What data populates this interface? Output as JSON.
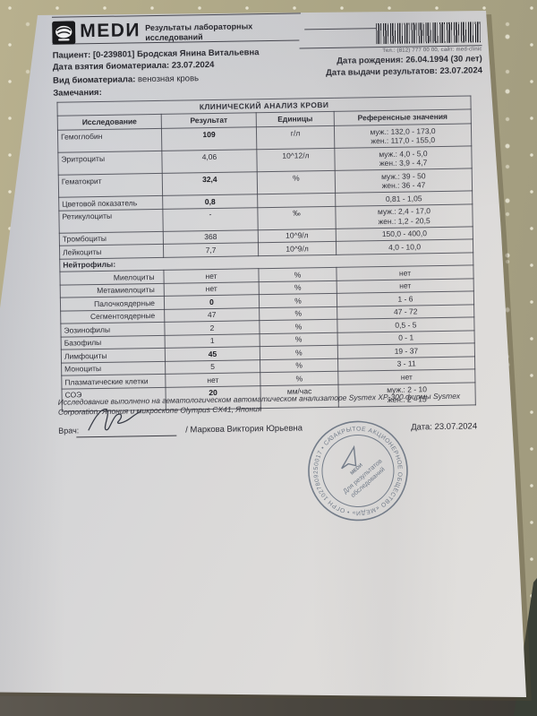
{
  "header": {
    "brand": "МЕDИ",
    "doc_title_line1": "Результаты лабораторных",
    "doc_title_line2": "исследований",
    "contact": "Тел.: (812) 777 00 00, сайт: med-clinic",
    "patient_label": "Пациент:",
    "patient_value": "[0-239801] Бродская Янина Витальевна",
    "sampling_date_label": "Дата взятия биоматериала:",
    "sampling_date_value": "23.07.2024",
    "birth_date_label": "Дата рождения:",
    "birth_date_value": "26.04.1994 (30 лет)",
    "issue_date_label": "Дата выдачи результатов:",
    "issue_date_value": "23.07.2024",
    "biomaterial_label": "Вид биоматериала:",
    "biomaterial_value": "венозная кровь",
    "remarks_label": "Замечания:"
  },
  "table": {
    "title": "КЛИНИЧЕСКИЙ АНАЛИЗ КРОВИ",
    "columns": [
      "Исследование",
      "Результат",
      "Единицы",
      "Референсные значения"
    ],
    "rows": [
      {
        "name": "Гемоглобин",
        "result": "109",
        "bold": true,
        "units": "г/л",
        "ref": "муж.: 132,0 - 173,0\nжен.: 117,0 - 155,0"
      },
      {
        "name": "Эритроциты",
        "result": "4,06",
        "bold": false,
        "units": "10^12/л",
        "ref": "муж.: 4,0 - 5,0\nжен.: 3,9 - 4,7"
      },
      {
        "name": "Гематокрит",
        "result": "32,4",
        "bold": true,
        "units": "%",
        "ref": "муж.: 39 - 50\nжен.: 36 - 47"
      },
      {
        "name": "Цветовой показатель",
        "result": "0,8",
        "bold": true,
        "units": "",
        "ref": "0,81 - 1,05"
      },
      {
        "name": "Ретикулоциты",
        "result": "-",
        "bold": false,
        "units": "‰",
        "ref": "муж.: 2,4 - 17,0\nжен.: 1,2 - 20,5"
      },
      {
        "name": "Тромбоциты",
        "result": "368",
        "bold": false,
        "units": "10^9/л",
        "ref": "150,0 - 400,0"
      },
      {
        "name": "Лейкоциты",
        "result": "7,7",
        "bold": false,
        "units": "10^9/л",
        "ref": "4,0 - 10,0"
      },
      {
        "section": "Нейтрофилы:"
      },
      {
        "name": "Миелоциты",
        "indent": true,
        "result": "нет",
        "bold": false,
        "units": "%",
        "ref": "нет"
      },
      {
        "name": "Метамиелоциты",
        "indent": true,
        "result": "нет",
        "bold": false,
        "units": "%",
        "ref": "нет"
      },
      {
        "name": "Палочкоядерные",
        "indent": true,
        "result": "0",
        "bold": true,
        "units": "%",
        "ref": "1 - 6"
      },
      {
        "name": "Сегментоядерные",
        "indent": true,
        "result": "47",
        "bold": false,
        "units": "%",
        "ref": "47 - 72"
      },
      {
        "name": "Эозинофилы",
        "result": "2",
        "bold": false,
        "units": "%",
        "ref": "0,5 - 5"
      },
      {
        "name": "Базофилы",
        "result": "1",
        "bold": false,
        "units": "%",
        "ref": "0 - 1"
      },
      {
        "name": "Лимфоциты",
        "result": "45",
        "bold": true,
        "units": "%",
        "ref": "19 - 37"
      },
      {
        "name": "Моноциты",
        "result": "5",
        "bold": false,
        "units": "%",
        "ref": "3 - 11"
      },
      {
        "name": "Плазматические клетки",
        "result": "нет",
        "bold": false,
        "units": "%",
        "ref": "нет"
      },
      {
        "name": "СОЭ",
        "result": "20",
        "bold": true,
        "units": "мм/час",
        "ref": "муж.: 2 - 10\nжен.: 2 - 15"
      }
    ]
  },
  "footer": {
    "note_line1": "Исследование выполнено на гематологическом автоматическом анализаторе Sysmex XP-300 фирмы Sysmex",
    "note_line2": "Corporation, Япония и микроскопе Olympus CX41, Япония",
    "doctor_label": "Врач:",
    "doctor_name": "/ Маркова Виктория Юрьевна",
    "date_label": "Дата:",
    "date_value": "23.07.2024"
  },
  "stamp": {
    "ring_text": "ЗАКРЫТОЕ АКЦИОНЕРНОЕ ОБЩЕСТВО «МЕДИ» • ОГРН 1027809250017 • САНКТ-ПЕТЕРБУРГ •",
    "center_brand": "МЕDИ",
    "center_line1": "Для результатов",
    "center_line2": "обследований",
    "ink_color": "#5c6878"
  },
  "colors": {
    "paper": "#d9d8d8",
    "table_surface": "#aba47f",
    "ink": "#2b2b33",
    "stamp_ink": "#5c6878"
  }
}
